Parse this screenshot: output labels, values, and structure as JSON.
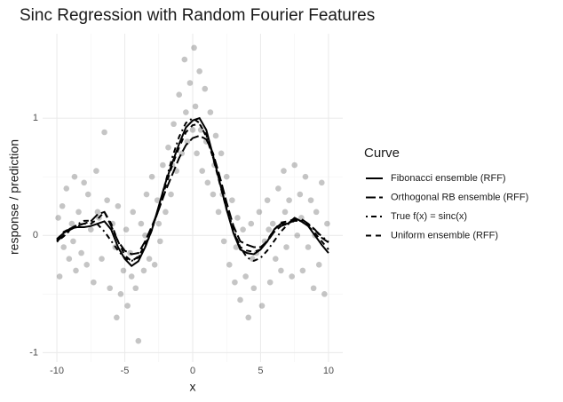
{
  "chart_data": {
    "type": "line",
    "title": "Sinc Regression with Random Fourier Features",
    "x_label": "x",
    "y_label": "response / prediction",
    "legend_title": "Curve",
    "legend_position": "right",
    "xlim": [
      -11.05,
      11.05
    ],
    "ylim": [
      -1.08,
      1.72
    ],
    "xticks": [
      -10,
      -5,
      0,
      5,
      10
    ],
    "yticks": [
      -1,
      0,
      1
    ],
    "grid": true,
    "minor_grid": true,
    "points": {
      "color": "#404040",
      "x": [
        -9.8,
        -9.6,
        -9.5,
        -9.3,
        -9.1,
        -8.9,
        -8.7,
        -8.6,
        -8.4,
        -8.2,
        -8.0,
        -7.8,
        -7.7,
        -7.5,
        -7.3,
        -7.1,
        -6.9,
        -6.7,
        -6.5,
        -6.3,
        -6.1,
        -5.9,
        -5.7,
        -5.5,
        -5.3,
        -5.1,
        -4.9,
        -4.8,
        -4.6,
        -4.4,
        -4.2,
        -4.0,
        -3.8,
        -3.6,
        -3.4,
        -3.2,
        -3.0,
        -2.8,
        -2.6,
        -2.4,
        -2.2,
        -2.0,
        -1.8,
        -1.6,
        -1.4,
        -1.2,
        -1.0,
        -0.8,
        -0.6,
        -0.4,
        -0.2,
        0.0,
        0.1,
        0.3,
        0.5,
        0.7,
        0.9,
        1.1,
        1.3,
        1.5,
        1.7,
        1.9,
        2.1,
        2.3,
        2.5,
        2.7,
        2.9,
        3.1,
        3.3,
        3.5,
        3.7,
        3.9,
        4.1,
        4.3,
        4.5,
        4.7,
        4.9,
        5.1,
        5.3,
        5.5,
        5.7,
        5.9,
        6.1,
        6.3,
        6.5,
        6.7,
        6.9,
        7.1,
        7.3,
        7.5,
        7.7,
        7.9,
        8.1,
        8.3,
        8.5,
        8.7,
        8.9,
        9.1,
        9.3,
        9.5,
        9.7,
        9.9,
        -9.9,
        -8.8,
        -7.0,
        -5.6,
        -4.5,
        -3.5,
        -2.5,
        -1.5,
        -0.5,
        0.2,
        0.6,
        1.0,
        1.6,
        2.2,
        3.2,
        4.4,
        5.6,
        6.8,
        8.0,
        9.0
      ],
      "y": [
        -0.35,
        0.25,
        -0.1,
        0.4,
        -0.2,
        0.1,
        0.5,
        -0.3,
        0.2,
        -0.15,
        0.45,
        -0.25,
        0.35,
        0.05,
        -0.4,
        0.55,
        0.15,
        -0.2,
        0.88,
        0.3,
        -0.45,
        0.1,
        -0.1,
        0.25,
        -0.5,
        -0.3,
        0.05,
        -0.6,
        -0.15,
        0.2,
        -0.45,
        -0.9,
        0.1,
        -0.3,
        0.35,
        -0.2,
        0.5,
        -0.25,
        0.3,
        -0.05,
        0.6,
        0.2,
        0.75,
        0.35,
        0.95,
        0.55,
        1.2,
        0.7,
        1.5,
        0.8,
        1.3,
        0.9,
        1.6,
        0.7,
        1.4,
        0.55,
        1.25,
        0.45,
        1.05,
        0.35,
        0.85,
        0.2,
        0.7,
        -0.05,
        0.5,
        -0.25,
        0.3,
        -0.4,
        0.15,
        -0.55,
        0.05,
        -0.35,
        -0.7,
        0.1,
        -0.45,
        -0.15,
        0.2,
        -0.6,
        -0.05,
        0.3,
        -0.4,
        0.1,
        -0.2,
        0.4,
        -0.3,
        0.55,
        -0.1,
        0.3,
        -0.35,
        0.6,
        0.0,
        0.35,
        -0.3,
        0.5,
        -0.1,
        0.3,
        -0.45,
        0.2,
        -0.25,
        0.45,
        -0.5,
        0.1,
        0.15,
        -0.05,
        0.2,
        -0.7,
        -0.35,
        0.0,
        0.1,
        0.6,
        1.05,
        1.1,
        0.9,
        0.8,
        0.6,
        0.35,
        -0.1,
        -0.2,
        0.05,
        0.2,
        0.15,
        0.0
      ]
    },
    "x": [
      -10,
      -9.5,
      -9,
      -8.5,
      -8,
      -7.5,
      -7,
      -6.5,
      -6,
      -5.5,
      -5,
      -4.5,
      -4,
      -3.5,
      -3,
      -2.5,
      -2,
      -1.5,
      -1,
      -0.5,
      0,
      0.5,
      1,
      1.5,
      2,
      2.5,
      3,
      3.5,
      4,
      4.5,
      5,
      5.5,
      6,
      6.5,
      7,
      7.5,
      8,
      8.5,
      9,
      9.5,
      10
    ],
    "series": [
      {
        "name": "Fibonacci ensemble (RFF)",
        "color": "#000000",
        "linetype": "solid",
        "values": [
          -0.03,
          0.02,
          0.06,
          0.07,
          0.07,
          0.08,
          0.1,
          0.12,
          0.05,
          -0.1,
          -0.2,
          -0.26,
          -0.22,
          -0.1,
          0.05,
          0.25,
          0.45,
          0.62,
          0.78,
          0.92,
          0.98,
          1.0,
          0.9,
          0.68,
          0.45,
          0.22,
          0.02,
          -0.12,
          -0.15,
          -0.16,
          -0.12,
          -0.05,
          0.05,
          0.1,
          0.1,
          0.15,
          0.12,
          0.08,
          0.0,
          -0.08,
          -0.15
        ]
      },
      {
        "name": "Orthogonal RB ensemble (RFF)",
        "color": "#000000",
        "linetype": "longdash",
        "values": [
          -0.05,
          0.0,
          0.05,
          0.08,
          0.1,
          0.12,
          0.18,
          0.2,
          0.08,
          -0.05,
          -0.13,
          -0.16,
          -0.15,
          -0.05,
          0.08,
          0.22,
          0.38,
          0.52,
          0.66,
          0.77,
          0.83,
          0.85,
          0.82,
          0.7,
          0.5,
          0.28,
          0.08,
          -0.05,
          -0.08,
          -0.1,
          -0.1,
          -0.05,
          0.03,
          0.08,
          0.1,
          0.13,
          0.14,
          0.1,
          0.05,
          -0.02,
          -0.06
        ]
      },
      {
        "name": "True f(x) = sinc(x)",
        "color": "#000000",
        "linetype": "dotdash",
        "values": [
          -0.054,
          -0.008,
          0.046,
          0.094,
          0.124,
          0.125,
          0.094,
          0.033,
          -0.047,
          -0.128,
          -0.192,
          -0.217,
          -0.189,
          -0.1,
          0.047,
          0.239,
          0.455,
          0.665,
          0.841,
          0.959,
          1,
          0.959,
          0.841,
          0.665,
          0.455,
          0.239,
          0.047,
          -0.1,
          -0.189,
          -0.217,
          -0.192,
          -0.128,
          -0.047,
          0.033,
          0.094,
          0.125,
          0.124,
          0.094,
          0.046,
          -0.008,
          -0.054
        ]
      },
      {
        "name": "Uniform ensemble (RFF)",
        "color": "#000000",
        "linetype": "dashed",
        "values": [
          -0.04,
          0.03,
          0.06,
          0.09,
          0.1,
          0.1,
          0.14,
          0.2,
          0.1,
          -0.05,
          -0.17,
          -0.22,
          -0.18,
          -0.08,
          0.06,
          0.22,
          0.42,
          0.6,
          0.75,
          0.88,
          0.94,
          0.95,
          0.86,
          0.66,
          0.44,
          0.22,
          0.03,
          -0.1,
          -0.13,
          -0.14,
          -0.12,
          -0.04,
          0.05,
          0.11,
          0.12,
          0.14,
          0.12,
          0.08,
          0.02,
          -0.05,
          -0.12
        ]
      }
    ]
  }
}
